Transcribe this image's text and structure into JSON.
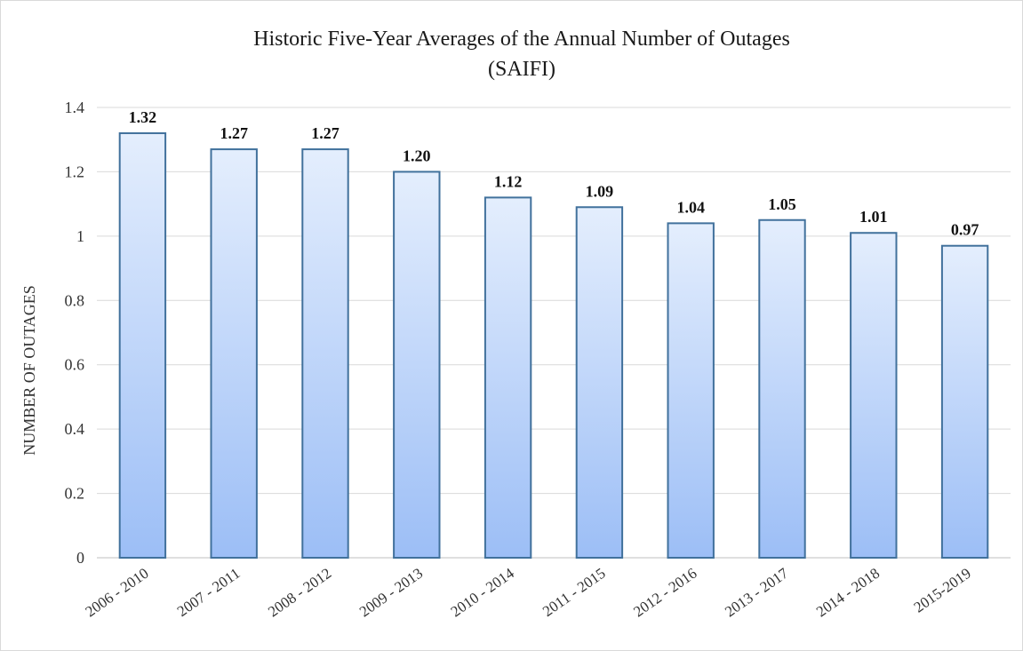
{
  "chart_data": {
    "type": "bar",
    "title": [
      "Historic Five-Year Averages of the Annual Number of Outages",
      "(SAIFI)"
    ],
    "xlabel": "",
    "ylabel": "NUMBER OF OUTAGES",
    "ylim": [
      0,
      1.4
    ],
    "yticks": [
      "0",
      "0.2",
      "0.4",
      "0.6",
      "0.8",
      "1",
      "1.2",
      "1.4"
    ],
    "categories": [
      "2006 - 2010",
      "2007 - 2011",
      "2008 - 2012",
      "2009 - 2013",
      "2010 - 2014",
      "2011 - 2015",
      "2012 - 2016",
      "2013 - 2017",
      "2014 - 2018",
      "2015-2019"
    ],
    "values": [
      1.32,
      1.27,
      1.27,
      1.2,
      1.12,
      1.09,
      1.04,
      1.05,
      1.01,
      0.97
    ],
    "data_labels": [
      "1.32",
      "1.27",
      "1.27",
      "1.20",
      "1.12",
      "1.09",
      "1.04",
      "1.05",
      "1.01",
      "0.97"
    ],
    "grid": true,
    "legend": "none",
    "colors": {
      "bar_fill_top": "#e4eefd",
      "bar_fill_bottom": "#9cbef6",
      "bar_border": "#41719c",
      "gridline": "#d9d9d9"
    }
  }
}
